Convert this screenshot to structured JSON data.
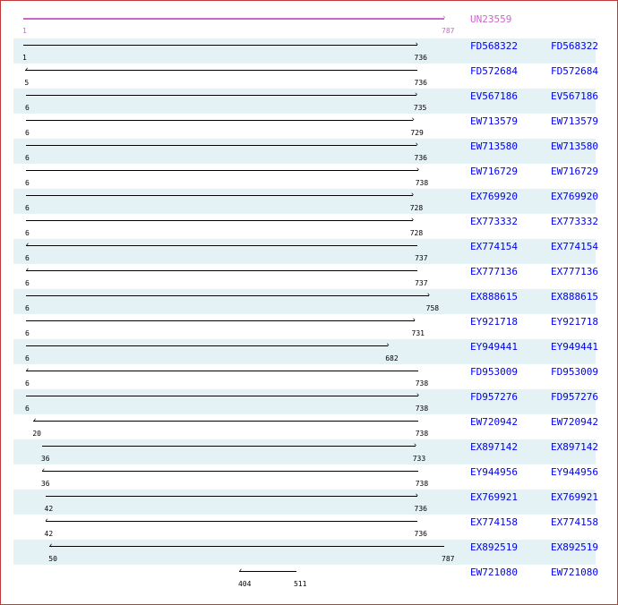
{
  "query": {
    "id": "UN23559",
    "start": 1,
    "end": 787,
    "direction": "forward",
    "color": "#cc66cc"
  },
  "scale": {
    "min": 1,
    "max": 787
  },
  "colors": {
    "link": "#0000ee",
    "row_shade": "#e4f1f5",
    "border": "#c0393b"
  },
  "hits": [
    {
      "id": "FD568322",
      "start": 1,
      "end": 736,
      "direction": "forward"
    },
    {
      "id": "FD572684",
      "start": 5,
      "end": 736,
      "direction": "reverse"
    },
    {
      "id": "EV567186",
      "start": 6,
      "end": 735,
      "direction": "forward"
    },
    {
      "id": "EW713579",
      "start": 6,
      "end": 729,
      "direction": "forward"
    },
    {
      "id": "EW713580",
      "start": 6,
      "end": 736,
      "direction": "forward"
    },
    {
      "id": "EW716729",
      "start": 6,
      "end": 738,
      "direction": "forward"
    },
    {
      "id": "EX769920",
      "start": 6,
      "end": 728,
      "direction": "forward"
    },
    {
      "id": "EX773332",
      "start": 6,
      "end": 728,
      "direction": "forward"
    },
    {
      "id": "EX774154",
      "start": 6,
      "end": 737,
      "direction": "reverse"
    },
    {
      "id": "EX777136",
      "start": 6,
      "end": 737,
      "direction": "reverse"
    },
    {
      "id": "EX888615",
      "start": 6,
      "end": 758,
      "direction": "forward"
    },
    {
      "id": "EY921718",
      "start": 6,
      "end": 731,
      "direction": "forward"
    },
    {
      "id": "EY949441",
      "start": 6,
      "end": 682,
      "direction": "forward"
    },
    {
      "id": "FD953009",
      "start": 6,
      "end": 738,
      "direction": "reverse"
    },
    {
      "id": "FD957276",
      "start": 6,
      "end": 738,
      "direction": "forward"
    },
    {
      "id": "EW720942",
      "start": 20,
      "end": 738,
      "direction": "reverse"
    },
    {
      "id": "EX897142",
      "start": 36,
      "end": 733,
      "direction": "forward"
    },
    {
      "id": "EY944956",
      "start": 36,
      "end": 738,
      "direction": "reverse"
    },
    {
      "id": "EX769921",
      "start": 42,
      "end": 736,
      "direction": "forward"
    },
    {
      "id": "EX774158",
      "start": 42,
      "end": 736,
      "direction": "reverse"
    },
    {
      "id": "EX892519",
      "start": 50,
      "end": 787,
      "direction": "reverse"
    },
    {
      "id": "EW721080",
      "start": 404,
      "end": 511,
      "direction": "reverse"
    }
  ]
}
